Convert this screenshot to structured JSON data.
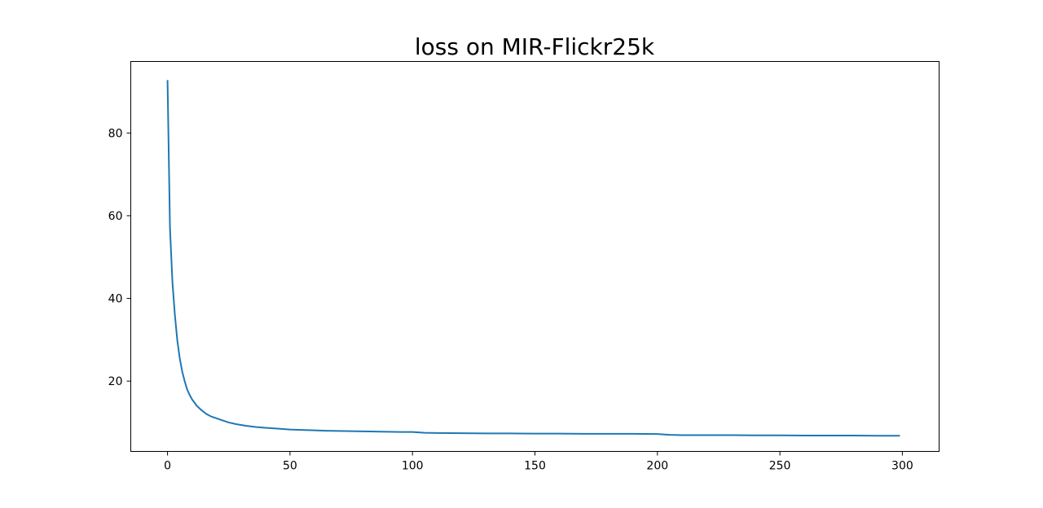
{
  "chart_data": {
    "type": "line",
    "title": "loss on MIR-Flickr25k",
    "xlabel": "",
    "ylabel": "",
    "xlim": [
      -15,
      315
    ],
    "ylim": [
      3.0,
      97.3
    ],
    "xticks": [
      0,
      50,
      100,
      150,
      200,
      250,
      300
    ],
    "yticks": [
      20,
      40,
      60,
      80
    ],
    "grid": false,
    "line_color": "#1f77b4",
    "series": [
      {
        "x": [
          0,
          1,
          2,
          3,
          4,
          5,
          6,
          7,
          8,
          9,
          10,
          12,
          14,
          16,
          18,
          20,
          22,
          25,
          28,
          32,
          36,
          40,
          45,
          50,
          55,
          60,
          65,
          70,
          75,
          80,
          85,
          90,
          95,
          100,
          105,
          110,
          120,
          130,
          140,
          150,
          160,
          170,
          180,
          190,
          200,
          205,
          210,
          220,
          230,
          240,
          250,
          260,
          270,
          280,
          290,
          299
        ],
        "y": [
          92.8,
          57.0,
          44.0,
          36.0,
          29.8,
          25.5,
          22.3,
          20.0,
          18.0,
          16.7,
          15.6,
          14.0,
          12.9,
          12.0,
          11.4,
          11.0,
          10.6,
          10.0,
          9.6,
          9.2,
          8.9,
          8.7,
          8.5,
          8.3,
          8.2,
          8.1,
          8.0,
          7.95,
          7.9,
          7.85,
          7.8,
          7.75,
          7.7,
          7.7,
          7.5,
          7.45,
          7.4,
          7.35,
          7.35,
          7.3,
          7.3,
          7.25,
          7.25,
          7.25,
          7.2,
          7.0,
          6.95,
          6.95,
          6.95,
          6.9,
          6.9,
          6.85,
          6.85,
          6.85,
          6.8,
          6.8
        ]
      }
    ]
  }
}
